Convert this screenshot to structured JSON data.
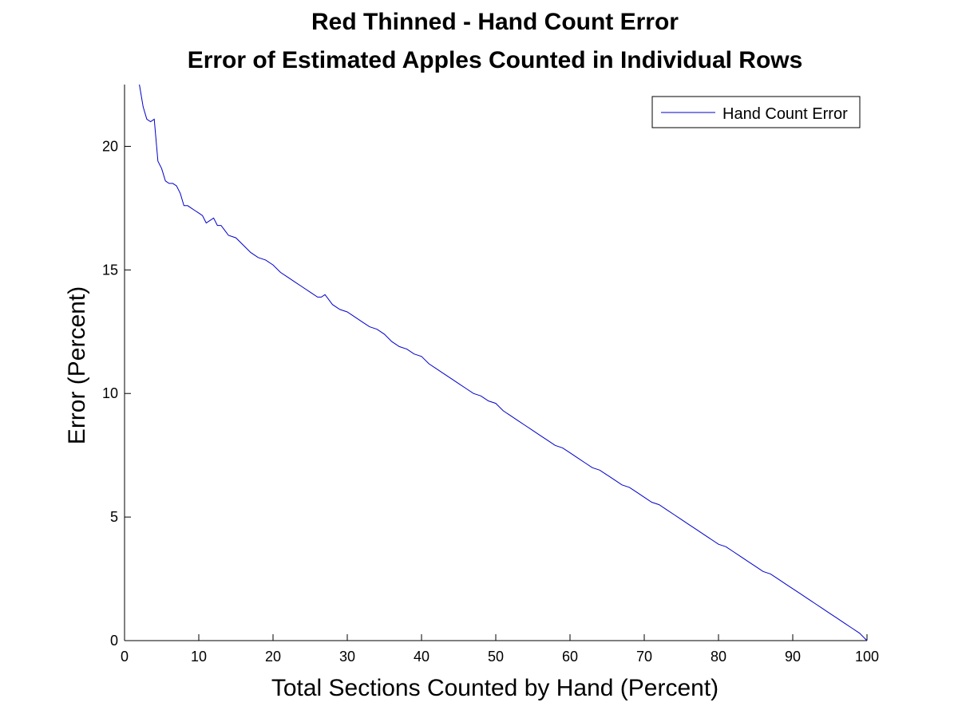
{
  "chart_data": {
    "type": "line",
    "title": "Red Thinned - Hand Count Error",
    "subtitle": "Error of Estimated Apples Counted in Individual Rows",
    "xlabel": "Total Sections Counted by Hand (Percent)",
    "ylabel": "Error (Percent)",
    "xlim": [
      0,
      100
    ],
    "ylim": [
      0,
      22.5
    ],
    "xticks": [
      0,
      10,
      20,
      30,
      40,
      50,
      60,
      70,
      80,
      90,
      100
    ],
    "yticks": [
      0,
      5,
      10,
      15,
      20
    ],
    "grid": false,
    "legend_position": "top-right",
    "colors": {
      "line": "#0000cc"
    },
    "series": [
      {
        "name": "Hand Count Error",
        "x": [
          2,
          2.5,
          3,
          3.5,
          4,
          4.5,
          5,
          5.5,
          6,
          6.5,
          7,
          7.5,
          8,
          8.5,
          9,
          9.5,
          10,
          10.5,
          11,
          11.5,
          12,
          12.5,
          13,
          13.5,
          14,
          15,
          16,
          17,
          18,
          19,
          20,
          21,
          22,
          23,
          24,
          25,
          26,
          26.5,
          27,
          28,
          29,
          30,
          31,
          32,
          33,
          34,
          35,
          36,
          37,
          38,
          39,
          40,
          41,
          42,
          43,
          44,
          45,
          46,
          47,
          48,
          49,
          50,
          51,
          52,
          53,
          54,
          55,
          56,
          57,
          58,
          59,
          60,
          61,
          62,
          63,
          64,
          65,
          66,
          67,
          68,
          69,
          70,
          71,
          72,
          73,
          74,
          75,
          76,
          77,
          78,
          79,
          80,
          81,
          82,
          83,
          84,
          85,
          86,
          87,
          88,
          89,
          90,
          91,
          92,
          93,
          94,
          95,
          96,
          97,
          98,
          99,
          100
        ],
        "y": [
          22.5,
          21.6,
          21.1,
          21.0,
          21.1,
          19.4,
          19.1,
          18.6,
          18.5,
          18.5,
          18.4,
          18.1,
          17.6,
          17.6,
          17.5,
          17.4,
          17.3,
          17.2,
          16.9,
          17.0,
          17.1,
          16.8,
          16.8,
          16.6,
          16.4,
          16.3,
          16.0,
          15.7,
          15.5,
          15.4,
          15.2,
          14.9,
          14.7,
          14.5,
          14.3,
          14.1,
          13.9,
          13.9,
          14.0,
          13.6,
          13.4,
          13.3,
          13.1,
          12.9,
          12.7,
          12.6,
          12.4,
          12.1,
          11.9,
          11.8,
          11.6,
          11.5,
          11.2,
          11.0,
          10.8,
          10.6,
          10.4,
          10.2,
          10.0,
          9.9,
          9.7,
          9.6,
          9.3,
          9.1,
          8.9,
          8.7,
          8.5,
          8.3,
          8.1,
          7.9,
          7.8,
          7.6,
          7.4,
          7.2,
          7.0,
          6.9,
          6.7,
          6.5,
          6.3,
          6.2,
          6.0,
          5.8,
          5.6,
          5.5,
          5.3,
          5.1,
          4.9,
          4.7,
          4.5,
          4.3,
          4.1,
          3.9,
          3.8,
          3.6,
          3.4,
          3.2,
          3.0,
          2.8,
          2.7,
          2.5,
          2.3,
          2.1,
          1.9,
          1.7,
          1.5,
          1.3,
          1.1,
          0.9,
          0.7,
          0.5,
          0.3,
          0.0
        ]
      }
    ]
  }
}
